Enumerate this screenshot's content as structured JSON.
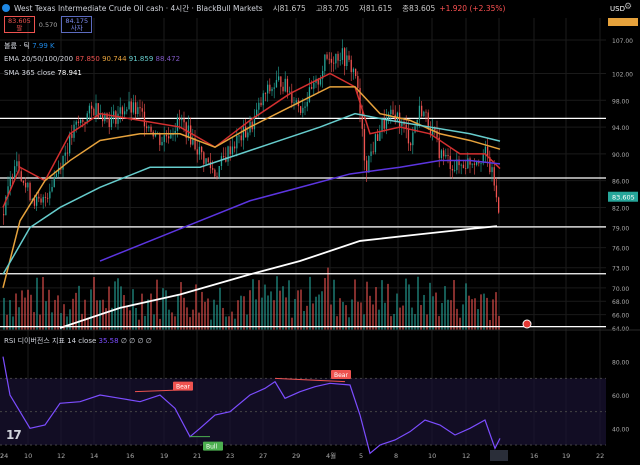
{
  "header": {
    "title": "West Texas Intermediate Crude Oil cash · 4시간 · BlackBull Markets",
    "open": "시81.675",
    "high": "고83.705",
    "low": "저81.615",
    "close": "종83.605",
    "change": "+1.920 (+2.35%)"
  },
  "quote": {
    "sell_price": "83.605",
    "sell_label": "팔",
    "spread": "0.570",
    "buy_price": "84.175",
    "buy_label": "사자"
  },
  "indicators": {
    "volume_label": "볼륨 · 틱",
    "volume_value": "7.99 K",
    "ema_label": "EMA 20/50/100/200",
    "ema20": "87.850",
    "ema50": "90.744",
    "ema100": "91.859",
    "ema200": "88.472",
    "sma_label": "SMA 365 close",
    "sma_value": "78.941"
  },
  "rsi": {
    "label": "RSI 디이버전스 지표 14 close",
    "value": "35.58",
    "icons": "∅ ∅ ∅ ∅",
    "bear1": "Bear",
    "bear2": "Bear",
    "bull": "Bull"
  },
  "axis": {
    "currency": "USD",
    "price_ticks": [
      "107.00",
      "102.00",
      "98.00",
      "94.00",
      "90.00",
      "86.00",
      "82.00",
      "79.00",
      "76.00",
      "73.00",
      "70.00",
      "68.00",
      "66.00",
      "64.00"
    ],
    "current_price_tag": "83.605",
    "rsi_ticks": [
      "80.00",
      "60.00",
      "40.00"
    ],
    "x_ticks": [
      "10",
      "12",
      "14",
      "16",
      "19",
      "21",
      "23",
      "27",
      "29",
      "4월",
      "5",
      "8",
      "10",
      "12",
      "14",
      "16",
      "19",
      "22",
      "24",
      "2"
    ]
  },
  "colors": {
    "bull": "#26a69a",
    "bear": "#ef5350",
    "ema20": "#d32f2f",
    "ema50": "#e6a23c",
    "ema100": "#66cccc",
    "ema200": "#5c35e0",
    "sma365": "#ffffff",
    "rsi": "#7c4dff"
  }
}
